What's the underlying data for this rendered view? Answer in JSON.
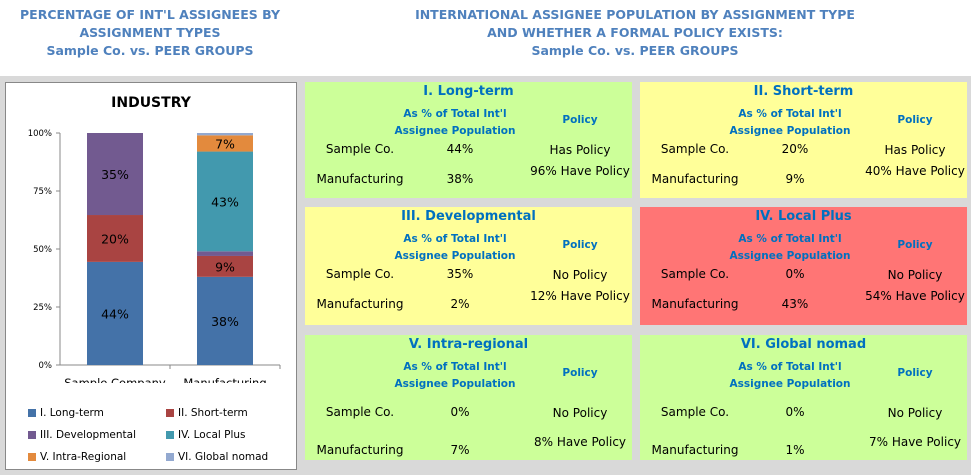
{
  "left_header": [
    "PERCENTAGE OF INT'L ASSIGNEES BY",
    "ASSIGNMENT TYPES",
    "Sample Co. vs. PEER GROUPS"
  ],
  "right_header": [
    "INTERNATIONAL ASSIGNEE POPULATION BY ASSIGNMENT TYPE",
    "AND WHETHER A FORMAL POLICY EXISTS:",
    "Sample Co. vs. PEER GROUPS"
  ],
  "chart_data": {
    "type": "bar",
    "stacked": true,
    "title": "INDUSTRY",
    "categories": [
      "Sample Company",
      "Manufacturing"
    ],
    "ylim": [
      0,
      100
    ],
    "yticks": [
      "0%",
      "25%",
      "50%",
      "75%",
      "100%"
    ],
    "legend_position": "bottom",
    "series": [
      {
        "name": "I. Long-term",
        "values": [
          44,
          38
        ],
        "color": "#4472a8",
        "labels": [
          "44%",
          "38%"
        ]
      },
      {
        "name": "II. Short-term",
        "values": [
          20,
          9
        ],
        "color": "#a94442",
        "labels": [
          "20%",
          "9%"
        ]
      },
      {
        "name": "III. Developmental",
        "values": [
          35,
          2
        ],
        "color": "#725a90",
        "labels": [
          "35%",
          ""
        ]
      },
      {
        "name": "IV. Local Plus",
        "values": [
          0,
          43
        ],
        "color": "#4299ae",
        "labels": [
          "",
          "43%"
        ]
      },
      {
        "name": "V. Intra-Regional",
        "values": [
          0,
          7
        ],
        "color": "#e38a3d",
        "labels": [
          "",
          "7%"
        ]
      },
      {
        "name": "VI. Global nomad",
        "values": [
          0,
          1
        ],
        "color": "#93a9d0",
        "labels": [
          "",
          ""
        ]
      }
    ]
  },
  "cards": [
    {
      "title": "I. Long-term",
      "col1": "As % of Total Int'l Assignee Population",
      "col2": "Policy",
      "color": "#ccff99",
      "rows": [
        [
          "Sample Co.",
          "44%",
          "Has Policy"
        ],
        [
          "Manufacturing",
          "38%",
          "96% Have Policy"
        ]
      ]
    },
    {
      "title": "II. Short-term",
      "col1": "As % of Total Int'l Assignee Population",
      "col2": "Policy",
      "color": "#ffff99",
      "rows": [
        [
          "Sample Co.",
          "20%",
          "Has Policy"
        ],
        [
          "Manufacturing",
          "9%",
          "40% Have Policy"
        ]
      ]
    },
    {
      "title": "III. Developmental",
      "col1": "As % of Total Int'l Assignee Population",
      "col2": "Policy",
      "color": "#ffff99",
      "rows": [
        [
          "Sample Co.",
          "35%",
          "No Policy"
        ],
        [
          "Manufacturing",
          "2%",
          "12% Have Policy"
        ]
      ]
    },
    {
      "title": "IV. Local Plus",
      "col1": "As % of Total Int'l Assignee Population",
      "col2": "Policy",
      "color": "#ff7575",
      "rows": [
        [
          "Sample Co.",
          "0%",
          "No Policy"
        ],
        [
          "Manufacturing",
          "43%",
          "54% Have Policy"
        ]
      ]
    },
    {
      "title": "V. Intra-regional",
      "col1": "As % of Total Int'l Assignee Population",
      "col2": "Policy",
      "color": "#ccff99",
      "rows": [
        [
          "Sample Co.",
          "0%",
          "No Policy"
        ],
        [
          "Manufacturing",
          "7%",
          "8% Have Policy"
        ]
      ]
    },
    {
      "title": "VI. Global  nomad",
      "col1": "As % of Total Int'l Assignee Population",
      "col2": "Policy",
      "color": "#ccff99",
      "rows": [
        [
          "Sample Co.",
          "0%",
          "No Policy"
        ],
        [
          "Manufacturing",
          "1%",
          "7% Have Policy"
        ]
      ]
    }
  ]
}
